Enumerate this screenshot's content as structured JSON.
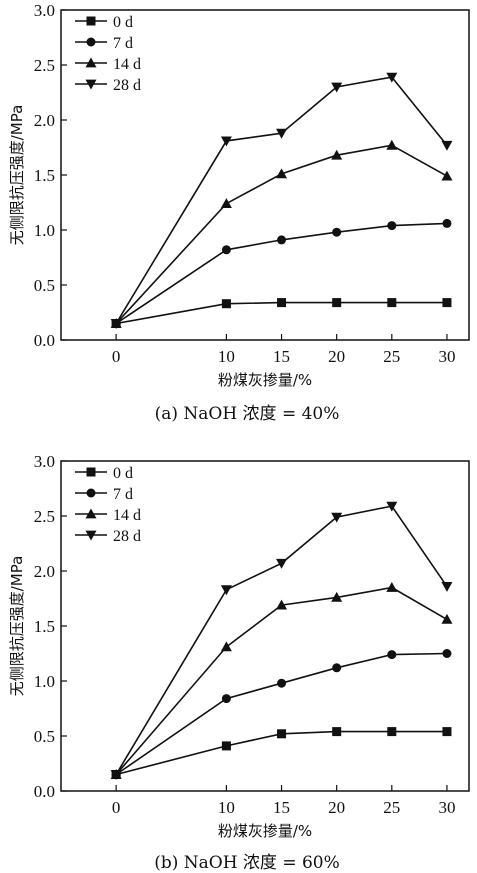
{
  "chart_data": [
    {
      "type": "line",
      "caption": "(a) NaOH 浓度 = 40%",
      "xlabel": "粉煤灰掺量/%",
      "ylabel": "无侧限抗压强度/MPa",
      "x": [
        0,
        10,
        15,
        20,
        25,
        30
      ],
      "xticks": [
        "0",
        "10",
        "15",
        "20",
        "25",
        "30"
      ],
      "yticks": [
        "0.0",
        "0.5",
        "1.0",
        "1.5",
        "2.0",
        "2.5",
        "3.0"
      ],
      "xlim": [
        -5,
        32
      ],
      "ylim": [
        0,
        3.0
      ],
      "legend_position": "top-left",
      "series": [
        {
          "name": "0 d",
          "marker": "square",
          "values": [
            0.15,
            0.33,
            0.34,
            0.34,
            0.34,
            0.34
          ]
        },
        {
          "name": "7 d",
          "marker": "circle",
          "values": [
            0.15,
            0.82,
            0.91,
            0.98,
            1.04,
            1.06
          ]
        },
        {
          "name": "14 d",
          "marker": "triangle-up",
          "values": [
            0.15,
            1.24,
            1.51,
            1.68,
            1.77,
            1.49
          ]
        },
        {
          "name": "28 d",
          "marker": "triangle-down",
          "values": [
            0.15,
            1.81,
            1.88,
            2.3,
            2.39,
            1.77
          ]
        }
      ]
    },
    {
      "type": "line",
      "caption": "(b) NaOH 浓度 = 60%",
      "xlabel": "粉煤灰掺量/%",
      "ylabel": "无侧限抗压强度/MPa",
      "x": [
        0,
        10,
        15,
        20,
        25,
        30
      ],
      "xticks": [
        "0",
        "10",
        "15",
        "20",
        "25",
        "30"
      ],
      "yticks": [
        "0.0",
        "0.5",
        "1.0",
        "1.5",
        "2.0",
        "2.5",
        "3.0"
      ],
      "xlim": [
        -5,
        32
      ],
      "ylim": [
        0,
        3.0
      ],
      "legend_position": "top-left",
      "series": [
        {
          "name": "0 d",
          "marker": "square",
          "values": [
            0.15,
            0.41,
            0.52,
            0.54,
            0.54,
            0.54
          ]
        },
        {
          "name": "7 d",
          "marker": "circle",
          "values": [
            0.15,
            0.84,
            0.98,
            1.12,
            1.24,
            1.25
          ]
        },
        {
          "name": "14 d",
          "marker": "triangle-up",
          "values": [
            0.15,
            1.31,
            1.69,
            1.76,
            1.85,
            1.56
          ]
        },
        {
          "name": "28 d",
          "marker": "triangle-down",
          "values": [
            0.15,
            1.83,
            2.07,
            2.49,
            2.59,
            1.86
          ]
        }
      ]
    }
  ]
}
